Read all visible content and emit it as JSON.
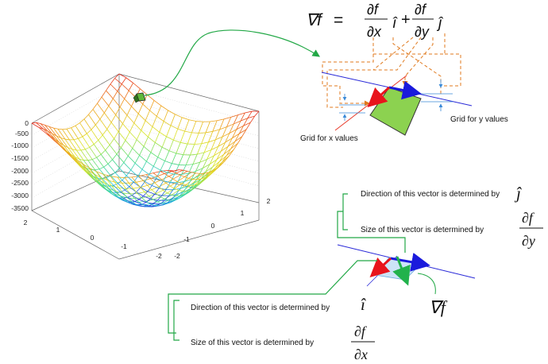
{
  "surface_plot": {
    "z_ticks": [
      "0",
      "-500",
      "-1000",
      "-1500",
      "-2000",
      "-2500",
      "-3000",
      "-3500"
    ],
    "x_ticks": [
      "2",
      "1",
      "0",
      "-1",
      "-2"
    ],
    "y_ticks": [
      "2",
      "1",
      "0",
      "-1",
      "-2"
    ]
  },
  "gradient_formula": {
    "nabla_f": "∇f",
    "equals": "=",
    "partial_x_num": "∂f",
    "partial_x_den": "∂x",
    "i_hat": "î",
    "plus": "+",
    "partial_y_num": "∂f",
    "partial_y_den": "∂y",
    "j_hat": "ĵ"
  },
  "labels": {
    "grid_x": "Grid for x values",
    "grid_y": "Grid for y values",
    "j_direction": "Direction of this vector is determined by",
    "j_size": "Size of this vector is determined by",
    "i_direction": "Direction of this vector is determined by",
    "i_size": "Size of this vector is determined by",
    "nabla_f_result": "∇f"
  },
  "colors": {
    "red_vector": "#e8141c",
    "blue_vector": "#1a1adc",
    "green_vector": "#22b24c",
    "patch_fill": "#8cd250",
    "callout_line": "#22a846",
    "dashed_orange": "#e07a1e",
    "tangent_line": "#2a2ad8",
    "grid_line": "#e83a2a"
  }
}
